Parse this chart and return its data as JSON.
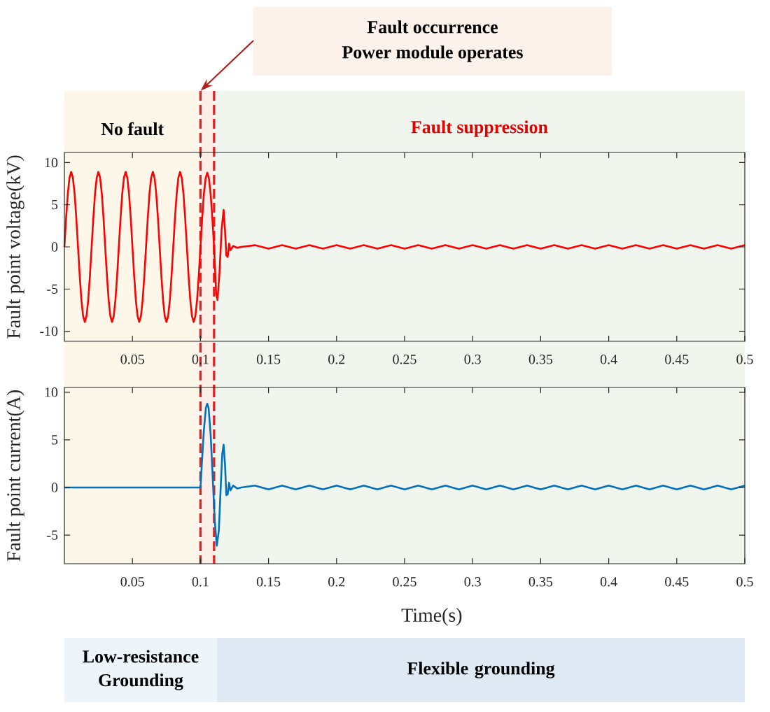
{
  "chart_data": [
    {
      "type": "line",
      "ylabel": "Fault point voltage(kV)",
      "xlim": [
        0,
        0.5
      ],
      "xticks": [
        0.05,
        0.1,
        0.15,
        0.2,
        0.25,
        0.3,
        0.35,
        0.4,
        0.45,
        0.5
      ],
      "ylim": [
        -11.2,
        11.2
      ],
      "yticks": [
        -10,
        -5,
        0,
        5,
        10
      ],
      "series": [
        {
          "color": "#ff0000",
          "x": [
            0,
            0.00125,
            0.0025,
            0.00375,
            0.005,
            0.00625,
            0.0075,
            0.00875,
            0.01,
            0.01125,
            0.0125,
            0.01375,
            0.015,
            0.01625,
            0.0175,
            0.01875,
            0.02,
            0.02125,
            0.0225,
            0.02375,
            0.025,
            0.02625,
            0.0275,
            0.02875,
            0.03,
            0.03125,
            0.0325,
            0.03375,
            0.035,
            0.03625,
            0.0375,
            0.03875,
            0.04,
            0.04125,
            0.0425,
            0.04375,
            0.045,
            0.04625,
            0.0475,
            0.04875,
            0.05,
            0.05125,
            0.0525,
            0.05375,
            0.055,
            0.05625,
            0.0575,
            0.05875,
            0.06,
            0.06125,
            0.0625,
            0.06375,
            0.065,
            0.06625,
            0.0675,
            0.06875,
            0.07,
            0.07125,
            0.0725,
            0.07375,
            0.075,
            0.07625,
            0.0775,
            0.07875,
            0.08,
            0.08125,
            0.0825,
            0.08375,
            0.085,
            0.08625,
            0.0875,
            0.08875,
            0.09,
            0.09125,
            0.0925,
            0.09375,
            0.095,
            0.09625,
            0.0975,
            0.09875,
            0.1,
            0.10125,
            0.1025,
            0.10375,
            0.105,
            0.10625,
            0.1075,
            0.10875,
            0.11,
            0.1115,
            0.1125,
            0.114,
            0.1155,
            0.117,
            0.118,
            0.119,
            0.12,
            0.121,
            0.122,
            0.124,
            0.127,
            0.13,
            0.14,
            0.15,
            0.16,
            0.17,
            0.18,
            0.19,
            0.2,
            0.21,
            0.22,
            0.23,
            0.24,
            0.25,
            0.26,
            0.27,
            0.28,
            0.29,
            0.3,
            0.31,
            0.32,
            0.33,
            0.34,
            0.35,
            0.36,
            0.37,
            0.38,
            0.39,
            0.4,
            0.41,
            0.42,
            0.43,
            0.44,
            0.45,
            0.46,
            0.47,
            0.48,
            0.49,
            0.5
          ],
          "values": [
            0,
            3.4,
            6.3,
            8.2,
            8.9,
            8.2,
            6.3,
            3.4,
            0,
            -3.4,
            -6.3,
            -8.2,
            -8.9,
            -8.2,
            -6.3,
            -3.4,
            0,
            3.4,
            6.3,
            8.2,
            8.9,
            8.2,
            6.3,
            3.4,
            0,
            -3.4,
            -6.3,
            -8.2,
            -8.9,
            -8.2,
            -6.3,
            -3.4,
            0,
            3.4,
            6.3,
            8.2,
            8.9,
            8.2,
            6.3,
            3.4,
            0,
            -3.4,
            -6.3,
            -8.2,
            -8.9,
            -8.2,
            -6.3,
            -3.4,
            0,
            3.4,
            6.3,
            8.2,
            8.9,
            8.2,
            6.3,
            3.4,
            0,
            -3.4,
            -6.3,
            -8.2,
            -8.9,
            -8.2,
            -6.3,
            -3.4,
            0,
            3.4,
            6.3,
            8.2,
            8.9,
            8.2,
            6.3,
            3.4,
            0,
            -3.4,
            -6.3,
            -8.2,
            -8.9,
            -8.2,
            -6.3,
            -3.4,
            0,
            3.4,
            6.3,
            8.1,
            8.8,
            8.1,
            6.2,
            3.3,
            0,
            -5.5,
            -6.3,
            -3,
            2,
            4.4,
            2,
            -1,
            -1.2,
            0.4,
            -0.4,
            0.1,
            -0.1,
            0,
            0.2,
            -0.2,
            0.2,
            -0.2,
            0.2,
            -0.2,
            0.2,
            -0.2,
            0.2,
            -0.2,
            0.2,
            -0.2,
            0.2,
            -0.2,
            0.2,
            -0.2,
            0.2,
            -0.2,
            0.2,
            -0.2,
            0.2,
            -0.2,
            0.2,
            -0.2,
            0.2,
            -0.2,
            0.2,
            -0.2,
            0.2,
            -0.2,
            0.2,
            -0.2,
            0.2,
            -0.2,
            0.2,
            -0.2,
            0.2
          ]
        }
      ],
      "bands": [
        {
          "axis": "x",
          "from": 0,
          "to": 0.1,
          "label": "No fault",
          "color": "#fdf7ea"
        },
        {
          "axis": "x",
          "from": 0.1,
          "to": 0.11,
          "color": "#fbeee9"
        },
        {
          "axis": "x",
          "from": 0.11,
          "to": 0.5,
          "label": "Fault suppression",
          "color": "#f0f6ee"
        }
      ],
      "ref_lines": [
        {
          "axis": "x",
          "value": 0.1,
          "color": "#d42a2a",
          "line_style": "dashed"
        },
        {
          "axis": "x",
          "value": 0.11,
          "color": "#d42a2a",
          "line_style": "dashed"
        }
      ],
      "annotations": [
        "Fault occurrence",
        "Power module operates"
      ]
    },
    {
      "type": "line",
      "xlabel": "Time(s)",
      "ylabel": "Fault point current(A)",
      "xlim": [
        0,
        0.5
      ],
      "xticks": [
        0.05,
        0.1,
        0.15,
        0.2,
        0.25,
        0.3,
        0.35,
        0.4,
        0.45,
        0.5
      ],
      "ylim": [
        -8,
        10.5
      ],
      "yticks": [
        -5,
        0,
        5,
        10
      ],
      "series": [
        {
          "color": "#0072bd",
          "x": [
            0,
            0.05,
            0.1,
            0.101,
            0.1025,
            0.104,
            0.105,
            0.106,
            0.1075,
            0.109,
            0.1105,
            0.112,
            0.1135,
            0.115,
            0.116,
            0.117,
            0.118,
            0.119,
            0.12,
            0.121,
            0.122,
            0.124,
            0.127,
            0.13,
            0.14,
            0.15,
            0.16,
            0.17,
            0.18,
            0.19,
            0.2,
            0.21,
            0.22,
            0.23,
            0.24,
            0.25,
            0.26,
            0.27,
            0.28,
            0.29,
            0.3,
            0.31,
            0.32,
            0.33,
            0.34,
            0.35,
            0.36,
            0.37,
            0.38,
            0.39,
            0.4,
            0.41,
            0.42,
            0.43,
            0.44,
            0.45,
            0.46,
            0.47,
            0.48,
            0.49,
            0.5
          ],
          "values": [
            0,
            0,
            0,
            2.5,
            6,
            8.4,
            8.8,
            8.3,
            5.5,
            1,
            -3.5,
            -6.1,
            -4.5,
            0.5,
            3.5,
            4.5,
            2.5,
            -0.8,
            -0.7,
            0.5,
            -0.3,
            0.2,
            -0.1,
            0,
            0.2,
            -0.2,
            0.2,
            -0.2,
            0.2,
            -0.2,
            0.2,
            -0.2,
            0.2,
            -0.2,
            0.2,
            -0.2,
            0.2,
            -0.2,
            0.2,
            -0.2,
            0.2,
            -0.2,
            0.2,
            -0.2,
            0.2,
            -0.2,
            0.2,
            -0.2,
            0.2,
            -0.2,
            0.2,
            -0.2,
            0.2,
            -0.2,
            0.2,
            -0.2,
            0.2,
            -0.2,
            0.2,
            -0.2,
            0.2
          ]
        }
      ],
      "bands": [
        {
          "axis": "x",
          "from": 0,
          "to": 0.1,
          "color": "#fdf7ea"
        },
        {
          "axis": "x",
          "from": 0.1,
          "to": 0.11,
          "color": "#fbeee9"
        },
        {
          "axis": "x",
          "from": 0.11,
          "to": 0.5,
          "color": "#f0f6ee"
        }
      ],
      "ref_lines": [
        {
          "axis": "x",
          "value": 0.1,
          "color": "#d42a2a",
          "line_style": "dashed"
        },
        {
          "axis": "x",
          "value": 0.11,
          "color": "#d42a2a",
          "line_style": "dashed"
        }
      ],
      "annotations": [
        "Low-resistance Grounding",
        "Flexible grounding"
      ]
    }
  ]
}
